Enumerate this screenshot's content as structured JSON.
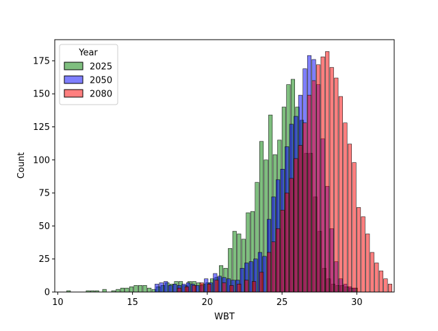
{
  "chart_data": {
    "type": "bar",
    "subtype": "overlapping-histogram",
    "title": "",
    "xlabel": "WBT",
    "ylabel": "Count",
    "xlim": [
      9.8,
      32.5
    ],
    "ylim": [
      0,
      191
    ],
    "xticks": [
      10,
      15,
      20,
      25,
      30
    ],
    "yticks": [
      0,
      25,
      50,
      75,
      100,
      125,
      150,
      175
    ],
    "grid": false,
    "legend": {
      "title": "Year",
      "placement": "top-left"
    },
    "bin_width": 0.25,
    "series": [
      {
        "name": "2025",
        "color": "#008000",
        "alpha": 0.5,
        "bins": [
          [
            10.6,
            1
          ],
          [
            11.9,
            1
          ],
          [
            12.2,
            1
          ],
          [
            12.5,
            1
          ],
          [
            13.0,
            2
          ],
          [
            13.6,
            1
          ],
          [
            13.9,
            2
          ],
          [
            14.2,
            3
          ],
          [
            14.5,
            3
          ],
          [
            14.8,
            4
          ],
          [
            15.1,
            5
          ],
          [
            15.4,
            5
          ],
          [
            15.7,
            5
          ],
          [
            16.0,
            3
          ],
          [
            16.3,
            2
          ],
          [
            16.6,
            4
          ],
          [
            16.9,
            5
          ],
          [
            17.2,
            7
          ],
          [
            17.5,
            6
          ],
          [
            17.8,
            8
          ],
          [
            18.1,
            8
          ],
          [
            18.4,
            5
          ],
          [
            18.7,
            8
          ],
          [
            19.0,
            8
          ],
          [
            19.3,
            7
          ],
          [
            19.6,
            6
          ],
          [
            19.9,
            7
          ],
          [
            20.2,
            10
          ],
          [
            20.5,
            11
          ],
          [
            20.8,
            20
          ],
          [
            21.1,
            18
          ],
          [
            21.4,
            33
          ],
          [
            21.7,
            46
          ],
          [
            22.0,
            44
          ],
          [
            22.3,
            40
          ],
          [
            22.6,
            60
          ],
          [
            22.9,
            61
          ],
          [
            23.2,
            83
          ],
          [
            23.5,
            114
          ],
          [
            23.8,
            100
          ],
          [
            24.1,
            134
          ],
          [
            24.4,
            104
          ],
          [
            24.7,
            115
          ],
          [
            25.0,
            140
          ],
          [
            25.3,
            157
          ],
          [
            25.6,
            161
          ],
          [
            25.9,
            140
          ],
          [
            26.2,
            130
          ],
          [
            26.5,
            105
          ],
          [
            26.8,
            105
          ],
          [
            27.1,
            72
          ],
          [
            27.4,
            46
          ],
          [
            27.7,
            18
          ],
          [
            28.0,
            10
          ],
          [
            28.3,
            6
          ],
          [
            28.6,
            5
          ],
          [
            28.9,
            5
          ],
          [
            29.2,
            4
          ],
          [
            29.5,
            3
          ],
          [
            29.8,
            3
          ]
        ]
      },
      {
        "name": "2050",
        "color": "#0000ff",
        "alpha": 0.5,
        "bins": [
          [
            16.5,
            6
          ],
          [
            16.8,
            7
          ],
          [
            17.1,
            8
          ],
          [
            17.4,
            5
          ],
          [
            17.7,
            6
          ],
          [
            18.0,
            5
          ],
          [
            18.3,
            6
          ],
          [
            18.6,
            7
          ],
          [
            18.9,
            6
          ],
          [
            19.2,
            5
          ],
          [
            19.5,
            5
          ],
          [
            19.8,
            10
          ],
          [
            20.1,
            7
          ],
          [
            20.4,
            14
          ],
          [
            20.7,
            12
          ],
          [
            21.0,
            11
          ],
          [
            21.3,
            10
          ],
          [
            21.6,
            9
          ],
          [
            21.9,
            9
          ],
          [
            22.2,
            18
          ],
          [
            22.5,
            22
          ],
          [
            22.8,
            23
          ],
          [
            23.1,
            25
          ],
          [
            23.4,
            30
          ],
          [
            23.7,
            27
          ],
          [
            24.0,
            55
          ],
          [
            24.3,
            72
          ],
          [
            24.6,
            85
          ],
          [
            24.9,
            93
          ],
          [
            25.2,
            110
          ],
          [
            25.5,
            127
          ],
          [
            25.8,
            133
          ],
          [
            26.1,
            149
          ],
          [
            26.4,
            169
          ],
          [
            26.7,
            179
          ],
          [
            27.0,
            176
          ],
          [
            27.3,
            157
          ],
          [
            27.6,
            116
          ],
          [
            27.9,
            80
          ],
          [
            28.2,
            48
          ],
          [
            28.5,
            23
          ],
          [
            28.8,
            10
          ],
          [
            29.1,
            6
          ],
          [
            29.4,
            4
          ],
          [
            29.7,
            3
          ]
        ]
      },
      {
        "name": "2080",
        "color": "#ff0000",
        "alpha": 0.5,
        "bins": [
          [
            18.0,
            3
          ],
          [
            18.5,
            4
          ],
          [
            19.0,
            5
          ],
          [
            19.5,
            7
          ],
          [
            20.0,
            6
          ],
          [
            20.5,
            9
          ],
          [
            21.0,
            7
          ],
          [
            21.5,
            5
          ],
          [
            22.0,
            6
          ],
          [
            22.5,
            9
          ],
          [
            23.0,
            8
          ],
          [
            23.5,
            15
          ],
          [
            24.0,
            30
          ],
          [
            24.3,
            38
          ],
          [
            24.6,
            48
          ],
          [
            24.9,
            62
          ],
          [
            25.2,
            75
          ],
          [
            25.5,
            86
          ],
          [
            25.8,
            101
          ],
          [
            26.1,
            111
          ],
          [
            26.4,
            128
          ],
          [
            26.7,
            149
          ],
          [
            27.0,
            160
          ],
          [
            27.3,
            172
          ],
          [
            27.6,
            178
          ],
          [
            27.9,
            182
          ],
          [
            28.2,
            170
          ],
          [
            28.5,
            162
          ],
          [
            28.8,
            148
          ],
          [
            29.1,
            128
          ],
          [
            29.4,
            112
          ],
          [
            29.7,
            98
          ],
          [
            30.0,
            64
          ],
          [
            30.3,
            57
          ],
          [
            30.6,
            44
          ],
          [
            30.9,
            30
          ],
          [
            31.2,
            22
          ],
          [
            31.5,
            16
          ],
          [
            31.8,
            10
          ],
          [
            32.1,
            6
          ]
        ]
      }
    ]
  }
}
